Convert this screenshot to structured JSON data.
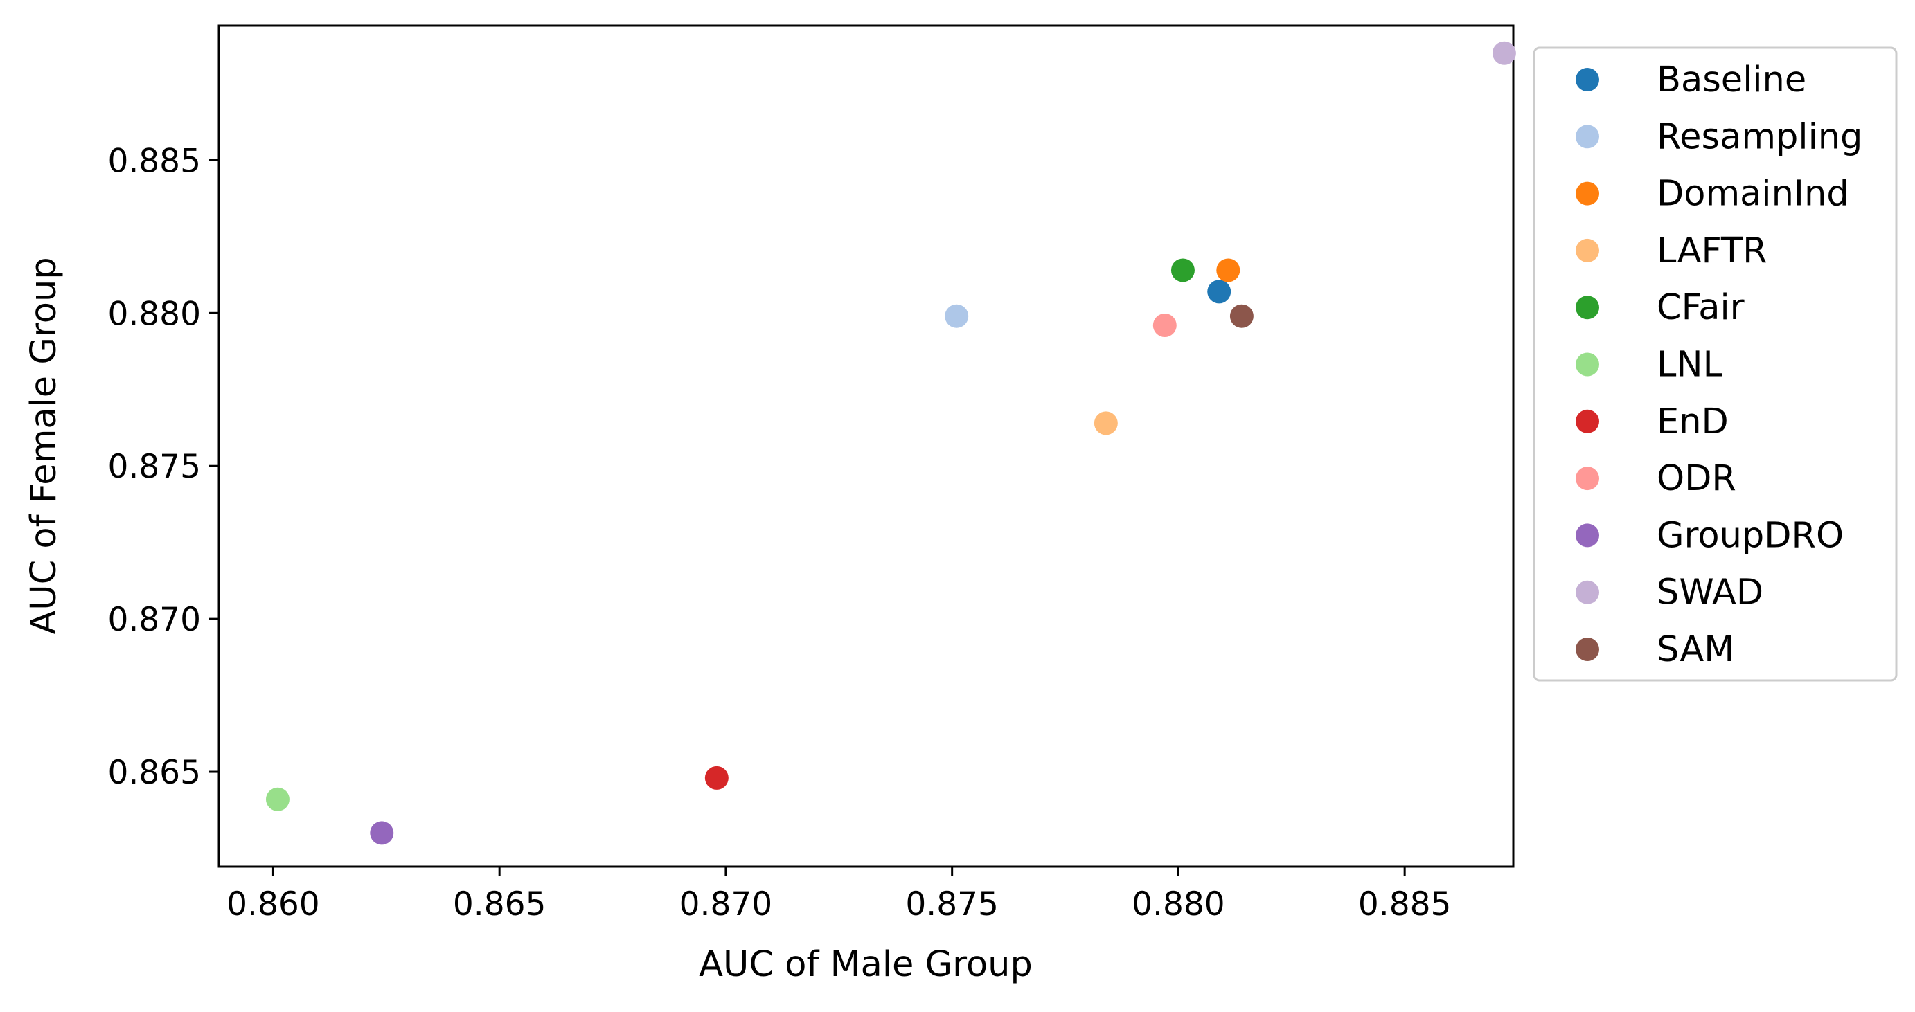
{
  "chart_data": {
    "type": "scatter",
    "xlabel": "AUC of Male Group",
    "ylabel": "AUC of Female Group",
    "xlim": [
      0.8588,
      0.8874
    ],
    "ylim": [
      0.8619,
      0.8894
    ],
    "xticks": [
      {
        "value": 0.86,
        "label": "0.860"
      },
      {
        "value": 0.865,
        "label": "0.865"
      },
      {
        "value": 0.87,
        "label": "0.870"
      },
      {
        "value": 0.875,
        "label": "0.875"
      },
      {
        "value": 0.88,
        "label": "0.880"
      },
      {
        "value": 0.885,
        "label": "0.885"
      }
    ],
    "yticks": [
      {
        "value": 0.865,
        "label": "0.865"
      },
      {
        "value": 0.87,
        "label": "0.870"
      },
      {
        "value": 0.875,
        "label": "0.875"
      },
      {
        "value": 0.88,
        "label": "0.880"
      },
      {
        "value": 0.885,
        "label": "0.885"
      }
    ],
    "grid": false,
    "legend_position": "outside-right",
    "series": [
      {
        "name": "Baseline",
        "color": "#1f77b4",
        "x": 0.8809,
        "y": 0.8807
      },
      {
        "name": "Resampling",
        "color": "#aec7e8",
        "x": 0.8751,
        "y": 0.8799
      },
      {
        "name": "DomainInd",
        "color": "#ff7f0e",
        "x": 0.8811,
        "y": 0.8814
      },
      {
        "name": "LAFTR",
        "color": "#ffbb78",
        "x": 0.8784,
        "y": 0.8764
      },
      {
        "name": "CFair",
        "color": "#2ca02c",
        "x": 0.8801,
        "y": 0.8814
      },
      {
        "name": "LNL",
        "color": "#98df8a",
        "x": 0.8601,
        "y": 0.8641
      },
      {
        "name": "EnD",
        "color": "#d62728",
        "x": 0.8698,
        "y": 0.8648
      },
      {
        "name": "ODR",
        "color": "#ff9896",
        "x": 0.8797,
        "y": 0.8796
      },
      {
        "name": "GroupDRO",
        "color": "#9467bd",
        "x": 0.8624,
        "y": 0.863
      },
      {
        "name": "SWAD",
        "color": "#c5b0d5",
        "x": 0.8872,
        "y": 0.8885
      },
      {
        "name": "SAM",
        "color": "#8c564b",
        "x": 0.8814,
        "y": 0.8799
      }
    ]
  }
}
